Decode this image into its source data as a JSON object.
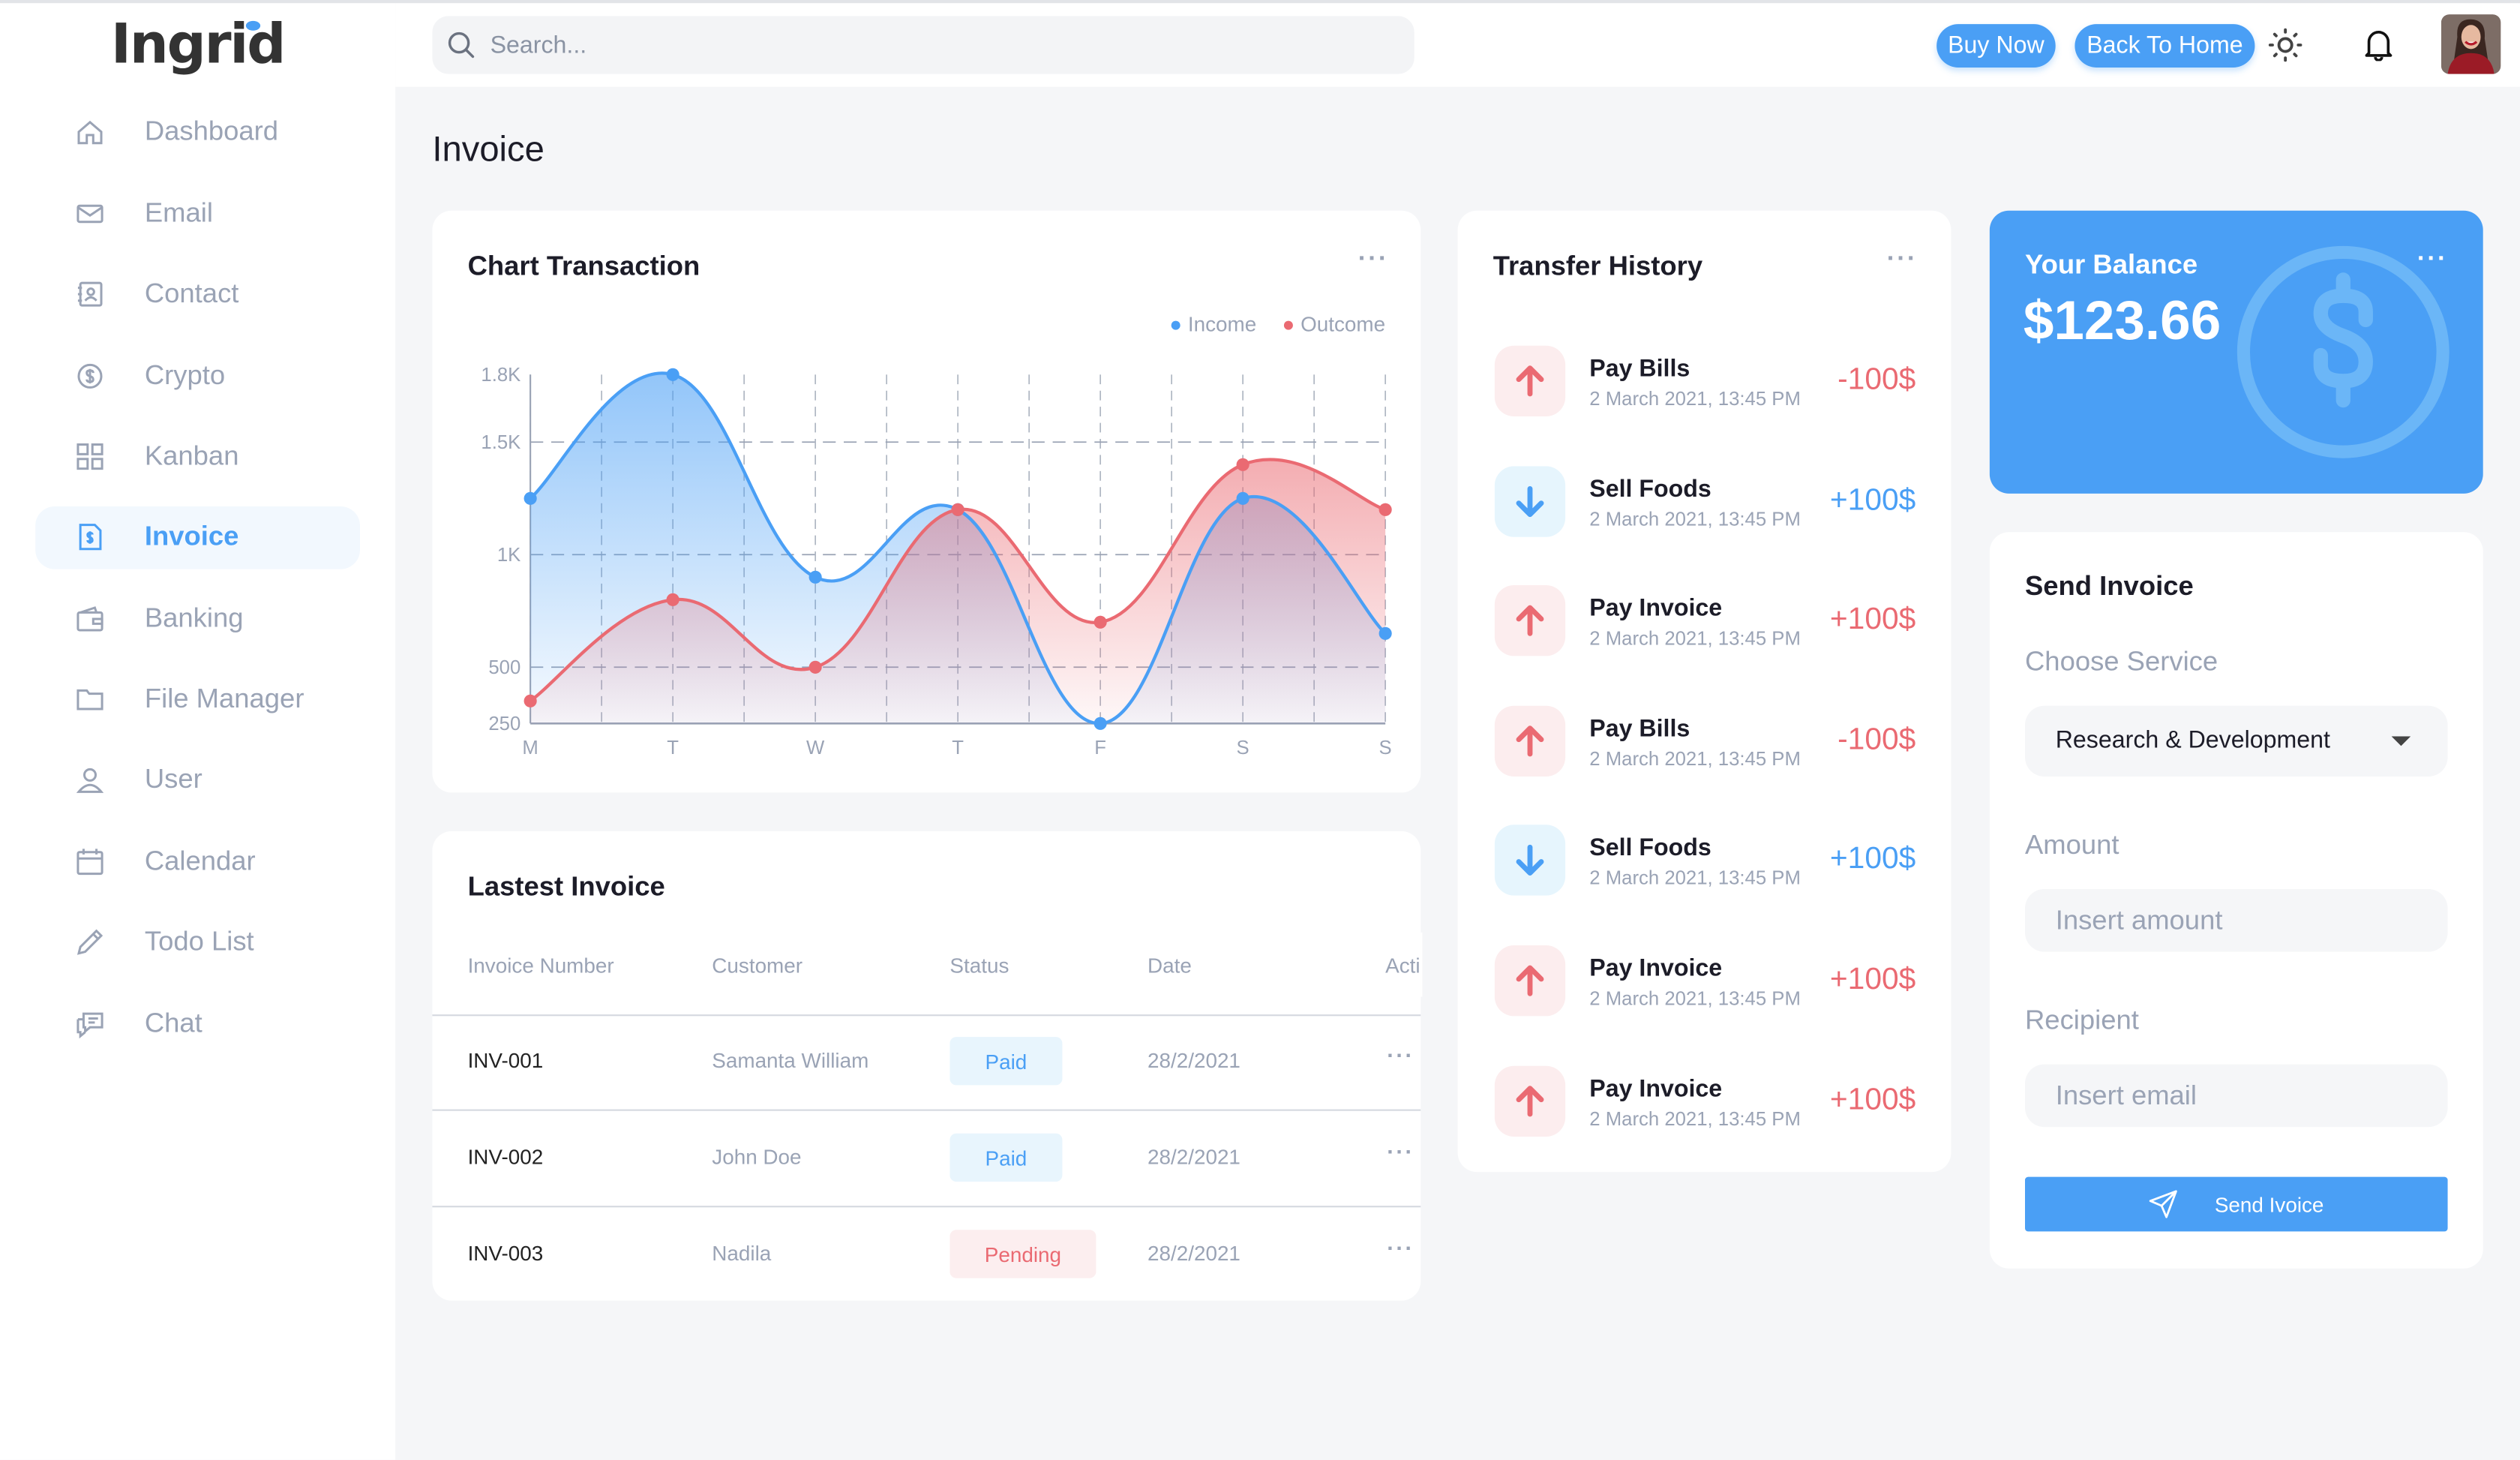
{
  "brand": {
    "name": "Ingrid",
    "accent": "#4a9ff5",
    "danger": "#ea6a72"
  },
  "sidebar": {
    "items": [
      {
        "label": "Dashboard",
        "icon": "home-icon"
      },
      {
        "label": "Email",
        "icon": "mail-icon"
      },
      {
        "label": "Contact",
        "icon": "contact-icon"
      },
      {
        "label": "Crypto",
        "icon": "coin-icon"
      },
      {
        "label": "Kanban",
        "icon": "grid-icon"
      },
      {
        "label": "Invoice",
        "icon": "invoice-icon",
        "active": true
      },
      {
        "label": "Banking",
        "icon": "wallet-icon"
      },
      {
        "label": "File Manager",
        "icon": "folder-icon"
      },
      {
        "label": "User",
        "icon": "user-icon"
      },
      {
        "label": "Calendar",
        "icon": "calendar-icon"
      },
      {
        "label": "Todo List",
        "icon": "pencil-icon"
      },
      {
        "label": "Chat",
        "icon": "chat-icon"
      }
    ]
  },
  "header": {
    "search_placeholder": "Search...",
    "buy_now": "Buy Now",
    "back_home": "Back To Home"
  },
  "page": {
    "title": "Invoice"
  },
  "chart_card": {
    "title": "Chart Transaction"
  },
  "chart_data": {
    "type": "area",
    "title": "Chart Transaction",
    "categories": [
      "M",
      "T",
      "W",
      "T",
      "F",
      "S",
      "S"
    ],
    "series": [
      {
        "name": "Income",
        "color": "#4a9ff5",
        "values": [
          1250,
          1800,
          900,
          1200,
          250,
          1250,
          650
        ]
      },
      {
        "name": "Outcome",
        "color": "#ea6a72",
        "values": [
          350,
          800,
          500,
          1200,
          700,
          1400,
          1200
        ]
      }
    ],
    "yticks": [
      {
        "v": 250,
        "label": "250"
      },
      {
        "v": 500,
        "label": "500"
      },
      {
        "v": 1000,
        "label": "1K"
      },
      {
        "v": 1500,
        "label": "1.5K"
      },
      {
        "v": 1800,
        "label": "1.8K"
      }
    ],
    "ylim": [
      250,
      1800
    ],
    "grid": true,
    "legend": "top-right"
  },
  "invoices": {
    "title": "Lastest Invoice",
    "columns": [
      "Invoice Number",
      "Customer",
      "Status",
      "Date",
      "Acti"
    ],
    "rows": [
      {
        "number": "INV-001",
        "customer": "Samanta William",
        "status": "Paid",
        "date": "28/2/2021"
      },
      {
        "number": "INV-002",
        "customer": "John Doe",
        "status": "Paid",
        "date": "28/2/2021"
      },
      {
        "number": "INV-003",
        "customer": "Nadila",
        "status": "Pending",
        "date": "28/2/2021"
      }
    ]
  },
  "transfers": {
    "title": "Transfer History",
    "items": [
      {
        "name": "Pay Bills",
        "date": "2 March 2021, 13:45 PM",
        "amount": "-100$",
        "dir": "up"
      },
      {
        "name": "Sell Foods",
        "date": "2 March 2021, 13:45 PM",
        "amount": "+100$",
        "dir": "down"
      },
      {
        "name": "Pay Invoice",
        "date": "2 March 2021, 13:45 PM",
        "amount": "+100$",
        "dir": "up"
      },
      {
        "name": "Pay Bills",
        "date": "2 March 2021, 13:45 PM",
        "amount": "-100$",
        "dir": "up"
      },
      {
        "name": "Sell Foods",
        "date": "2 March 2021, 13:45 PM",
        "amount": "+100$",
        "dir": "down"
      },
      {
        "name": "Pay Invoice",
        "date": "2 March 2021, 13:45 PM",
        "amount": "+100$",
        "dir": "up"
      },
      {
        "name": "Pay Invoice",
        "date": "2 March 2021, 13:45 PM",
        "amount": "+100$",
        "dir": "up"
      }
    ]
  },
  "balance": {
    "title": "Your Balance",
    "amount": "$123.66"
  },
  "send_invoice": {
    "title": "Send Invoice",
    "service_label": "Choose Service",
    "service_value": "Research & Development",
    "amount_label": "Amount",
    "amount_placeholder": "Insert amount",
    "recipient_label": "Recipient",
    "recipient_placeholder": "Insert email",
    "button": "Send Ivoice"
  }
}
